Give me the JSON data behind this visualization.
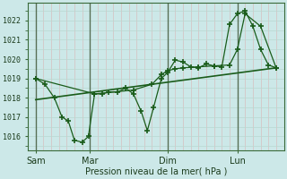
{
  "bg_color": "#cce8e8",
  "plot_bg_color": "#cce8e8",
  "line_color": "#1a5c1a",
  "ylabel": "Pression niveau de la mer( hPa )",
  "ylim": [
    1015.3,
    1022.9
  ],
  "yticks": [
    1016,
    1017,
    1018,
    1019,
    1020,
    1021,
    1022
  ],
  "xtick_labels": [
    "Sam",
    "Mar",
    "Dim",
    "Lun"
  ],
  "xtick_pos": [
    0.5,
    4.0,
    9.0,
    13.5
  ],
  "xlim": [
    0,
    16.5
  ],
  "vline_positions": [
    0.5,
    4.0,
    9.0,
    13.5
  ],
  "minor_grid_color": "#b8d8d0",
  "major_grid_color_v": "#e0a0a0",
  "major_grid_color_h": "#b8d8d0",
  "line1_x": [
    0.5,
    1.1,
    1.7,
    2.2,
    2.6,
    3.0,
    3.5,
    3.9,
    4.3,
    4.8,
    5.2,
    5.8,
    6.3,
    6.8,
    7.3,
    7.7,
    8.1,
    8.6,
    9.0,
    9.5,
    10.0,
    10.5,
    11.0,
    11.5,
    12.0,
    12.5,
    13.0,
    13.5,
    14.0,
    14.5,
    15.0,
    15.5,
    16.0
  ],
  "line1_y": [
    1019.0,
    1018.7,
    1018.0,
    1017.0,
    1016.8,
    1015.8,
    1015.7,
    1016.0,
    1018.2,
    1018.2,
    1018.3,
    1018.3,
    1018.5,
    1018.2,
    1017.3,
    1016.3,
    1017.5,
    1019.0,
    1019.3,
    1019.95,
    1019.85,
    1019.6,
    1019.55,
    1019.75,
    1019.65,
    1019.6,
    1021.8,
    1022.35,
    1022.5,
    1021.7,
    1020.5,
    1019.7,
    1019.55
  ],
  "line2_x": [
    0.5,
    4.3,
    6.8,
    8.0,
    8.6,
    9.0,
    9.5,
    10.0,
    11.0,
    12.0,
    13.0,
    13.5,
    14.0,
    15.0,
    16.0
  ],
  "line2_y": [
    1019.0,
    1018.2,
    1018.4,
    1018.7,
    1019.2,
    1019.4,
    1019.5,
    1019.55,
    1019.6,
    1019.65,
    1019.7,
    1020.5,
    1022.35,
    1021.7,
    1019.55
  ],
  "trend_x": [
    0.5,
    16.0
  ],
  "trend_y": [
    1017.9,
    1019.55
  ],
  "marker": "+",
  "markersize": 5,
  "markeredgewidth": 1.2
}
